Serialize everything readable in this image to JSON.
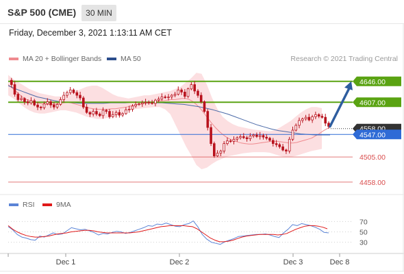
{
  "header": {
    "title": "S&P 500 (CME)",
    "timeframe": "30 MIN",
    "datetime": "Friday, December 3, 2021 1:13:11 AM CET"
  },
  "legend": {
    "ma20_label": "MA 20 + Bollinger Bands",
    "ma50_label": "MA 50",
    "rsi_label": "RSI",
    "rsi_ma_label": "9MA",
    "credit": "Research © 2021 Trading Central"
  },
  "colors": {
    "price": "#b8121d",
    "bollinger": "#fbd4d7",
    "ma20": "#ef8a8f",
    "ma50": "#4b6aa8",
    "resistance": "#5aa312",
    "pivot": "#2f6bd6",
    "support": "#d94c4c",
    "arrow": "#2e5d9f",
    "rsi": "#5b84d6",
    "rsi_ma": "#e01919",
    "last_price_tag": "#333333"
  },
  "chart_data": [
    {
      "type": "line",
      "name": "price-panel",
      "x_ticks": [
        "Dec 1",
        "Dec 2",
        "Dec 3",
        "Dec 8"
      ],
      "ylim": [
        4440,
        4670
      ],
      "levels": [
        {
          "kind": "resistance",
          "value": 4646.0,
          "label": "4646.00"
        },
        {
          "kind": "resistance",
          "value": 4607.0,
          "label": "4607.00"
        },
        {
          "kind": "last",
          "value": 4558.0,
          "label": "4558.00"
        },
        {
          "kind": "pivot",
          "value": 4547.0,
          "label": "4547.00"
        },
        {
          "kind": "support",
          "value": 4505.0,
          "label": "4505.00"
        },
        {
          "kind": "support",
          "value": 4458.0,
          "label": "4458.00"
        }
      ],
      "price": [
        4648,
        4640,
        4622,
        4612,
        4614,
        4608,
        4606,
        4610,
        4602,
        4598,
        4597,
        4604,
        4608,
        4602,
        4598,
        4603,
        4612,
        4620,
        4625,
        4630,
        4625,
        4620,
        4615,
        4598,
        4588,
        4585,
        4590,
        4585,
        4582,
        4592,
        4590,
        4580,
        4584,
        4588,
        4583,
        4586,
        4593,
        4594,
        4600,
        4603,
        4604,
        4606,
        4607,
        4606,
        4605,
        4611,
        4613,
        4617,
        4616,
        4617,
        4620,
        4622,
        4630,
        4626,
        4618,
        4632,
        4640,
        4628,
        4620,
        4608,
        4590,
        4560,
        4530,
        4507,
        4512,
        4516,
        4530,
        4535,
        4534,
        4538,
        4541,
        4543,
        4541,
        4539,
        4544,
        4546,
        4543,
        4545,
        4542,
        4540,
        4536,
        4530,
        4528,
        4524,
        4518,
        4516,
        4538,
        4555,
        4564,
        4573,
        4576,
        4579,
        4574,
        4580,
        4584,
        4581,
        4579,
        4568,
        4562
      ],
      "ma20": [
        4640,
        4634,
        4628,
        4622,
        4616,
        4612,
        4610,
        4608,
        4606,
        4604,
        4603,
        4603,
        4603,
        4604,
        4605,
        4606,
        4607,
        4606,
        4604,
        4602,
        4600,
        4598,
        4596,
        4595,
        4594,
        4594,
        4594,
        4594,
        4595,
        4595,
        4596,
        4597,
        4598,
        4600,
        4601,
        4603,
        4604,
        4605,
        4607,
        4608,
        4609,
        4610,
        4610,
        4611,
        4612,
        4612,
        4613,
        4614,
        4614,
        4612,
        4608,
        4602,
        4595,
        4586,
        4577,
        4568,
        4560,
        4553,
        4547,
        4542,
        4538,
        4535,
        4533,
        4531,
        4530,
        4529,
        4529,
        4530,
        4531,
        4532,
        4533,
        4534,
        4534,
        4534,
        4533,
        4532,
        4531,
        4531,
        4532,
        4534,
        4536,
        4538,
        4540,
        4544,
        4548,
        4553,
        4557,
        4561
      ],
      "ma50": [
        4638,
        4632,
        4627,
        4622,
        4617,
        4614,
        4611,
        4608,
        4607,
        4606,
        4605,
        4605,
        4605,
        4605,
        4606,
        4606,
        4606,
        4607,
        4607,
        4606,
        4606,
        4606,
        4605,
        4604,
        4603,
        4601,
        4599,
        4596,
        4593,
        4589,
        4585,
        4580,
        4575,
        4570,
        4565,
        4561,
        4557,
        4554,
        4552,
        4550,
        4548,
        4547,
        4546,
        4546,
        4546
      ],
      "bb_upper": [
        4658,
        4650,
        4644,
        4638,
        4632,
        4628,
        4624,
        4622,
        4620,
        4618,
        4618,
        4620,
        4624,
        4628,
        4632,
        4636,
        4638,
        4638,
        4634,
        4628,
        4622,
        4618,
        4616,
        4614,
        4616,
        4618,
        4620,
        4620,
        4622,
        4624,
        4626,
        4628,
        4632,
        4636,
        4644,
        4652,
        4662,
        4660,
        4640,
        4615,
        4595,
        4580,
        4572,
        4566,
        4562,
        4560,
        4558,
        4556,
        4555,
        4554,
        4553,
        4555,
        4560,
        4566,
        4572,
        4580,
        4588,
        4594,
        4598,
        4598,
        4596
      ],
      "bb_lower": [
        4620,
        4614,
        4606,
        4598,
        4592,
        4588,
        4586,
        4586,
        4588,
        4590,
        4592,
        4592,
        4590,
        4588,
        4584,
        4580,
        4578,
        4576,
        4576,
        4578,
        4580,
        4584,
        4588,
        4592,
        4594,
        4595,
        4596,
        4597,
        4598,
        4598,
        4594,
        4585,
        4565,
        4545,
        4525,
        4508,
        4490,
        4482,
        4485,
        4492,
        4498,
        4502,
        4506,
        4508,
        4510,
        4512,
        4513,
        4514,
        4514,
        4514,
        4513,
        4510,
        4507,
        4505,
        4505,
        4507,
        4510,
        4513,
        4516,
        4518,
        4520
      ]
    },
    {
      "type": "line",
      "name": "rsi-panel",
      "y_ticks": [
        70,
        50,
        30
      ],
      "ylim": [
        15,
        85
      ],
      "series": [
        {
          "name": "RSI",
          "values": [
            60,
            54,
            45,
            40,
            38,
            35,
            34,
            42,
            40,
            44,
            48,
            45,
            46,
            52,
            58,
            56,
            54,
            55,
            52,
            49,
            44,
            47,
            46,
            49,
            51,
            50,
            47,
            49,
            52,
            55,
            58,
            62,
            61,
            65,
            64,
            67,
            64,
            61,
            60,
            64,
            66,
            71,
            60,
            45,
            36,
            30,
            28,
            26,
            31,
            34,
            37,
            41,
            42,
            43,
            44,
            45,
            45,
            46,
            44,
            41,
            39,
            48,
            55,
            64,
            62,
            66,
            64,
            62,
            59,
            55,
            49,
            48
          ]
        },
        {
          "name": "9MA",
          "values": [
            62,
            55,
            50,
            46,
            43,
            41,
            40,
            40,
            41,
            42,
            44,
            46,
            47,
            48,
            50,
            51,
            52,
            53,
            53,
            52,
            50,
            49,
            48,
            48,
            48,
            48,
            48,
            48,
            49,
            50,
            52,
            54,
            56,
            58,
            60,
            61,
            62,
            62,
            62,
            62,
            61,
            60,
            56,
            50,
            44,
            38,
            34,
            31,
            31,
            32,
            34,
            37,
            40,
            42,
            43,
            44,
            45,
            45,
            45,
            45,
            44,
            45,
            47,
            51,
            55,
            58,
            61,
            62,
            62,
            61,
            59,
            56
          ]
        }
      ]
    }
  ]
}
